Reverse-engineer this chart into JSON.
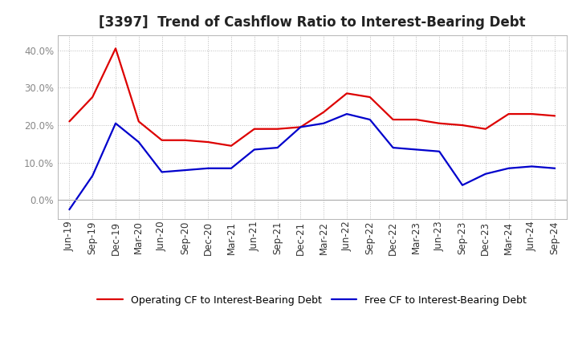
{
  "title": "[3397]  Trend of Cashflow Ratio to Interest-Bearing Debt",
  "x_labels": [
    "Jun-19",
    "Sep-19",
    "Dec-19",
    "Mar-20",
    "Jun-20",
    "Sep-20",
    "Dec-20",
    "Mar-21",
    "Jun-21",
    "Sep-21",
    "Dec-21",
    "Mar-22",
    "Jun-22",
    "Sep-22",
    "Dec-22",
    "Mar-23",
    "Jun-23",
    "Sep-23",
    "Dec-23",
    "Mar-24",
    "Jun-24",
    "Sep-24"
  ],
  "operating_cf": [
    0.21,
    0.275,
    0.405,
    0.21,
    0.16,
    0.16,
    0.155,
    0.145,
    0.19,
    0.19,
    0.195,
    0.235,
    0.285,
    0.275,
    0.215,
    0.215,
    0.205,
    0.2,
    0.19,
    0.23,
    0.23,
    0.225
  ],
  "free_cf": [
    -0.025,
    0.065,
    0.205,
    0.155,
    0.075,
    0.08,
    0.085,
    0.085,
    0.135,
    0.14,
    0.195,
    0.205,
    0.23,
    0.215,
    0.14,
    0.135,
    0.13,
    0.04,
    0.07,
    0.085,
    0.09,
    0.085
  ],
  "operating_color": "#dd0000",
  "free_color": "#0000cc",
  "ylim": [
    -0.05,
    0.44
  ],
  "yticks": [
    0.0,
    0.1,
    0.2,
    0.3,
    0.4
  ],
  "background_color": "#ffffff",
  "plot_bg_color": "#ffffff",
  "grid_color": "#aaaaaa",
  "legend_operating": "Operating CF to Interest-Bearing Debt",
  "legend_free": "Free CF to Interest-Bearing Debt",
  "title_fontsize": 12,
  "tick_fontsize": 8.5,
  "legend_fontsize": 9,
  "line_width": 1.6,
  "ytick_color": "#888888",
  "spine_color": "#aaaaaa"
}
